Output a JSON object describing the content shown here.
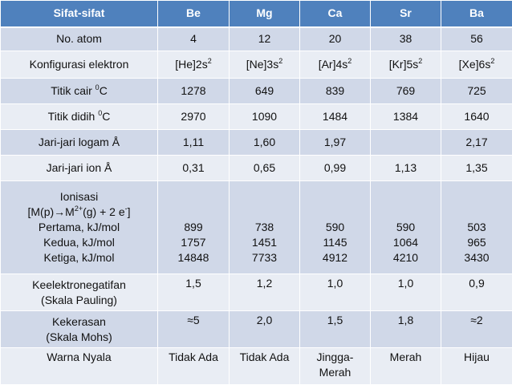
{
  "header": [
    "Sifat-sifat",
    "Be",
    "Mg",
    "Ca",
    "Sr",
    "Ba"
  ],
  "rows": {
    "atom_no": {
      "label": "No. atom",
      "values": [
        "4",
        "12",
        "20",
        "38",
        "56"
      ]
    },
    "config": {
      "label": "Konfigurasi elektron",
      "values": [
        {
          "base": "[He]2s",
          "sup": "2"
        },
        {
          "base": "[Ne]3s",
          "sup": "2"
        },
        {
          "base": "[Ar]4s",
          "sup": "2"
        },
        {
          "base": "[Kr]5s",
          "sup": "2"
        },
        {
          "base": "[Xe]6s",
          "sup": "2"
        }
      ]
    },
    "melting": {
      "label_pre": "Titik cair ",
      "label_sup": "0",
      "label_post": "C",
      "values": [
        "1278",
        "649",
        "839",
        "769",
        "725"
      ]
    },
    "boiling": {
      "label_pre": "Titik didih ",
      "label_sup": "0",
      "label_post": "C",
      "values": [
        "2970",
        "1090",
        "1484",
        "1384",
        "1640"
      ]
    },
    "metal_radius": {
      "label": "Jari-jari logam Å",
      "values": [
        "1,11",
        "1,60",
        "1,97",
        "",
        "2,17"
      ]
    },
    "ion_radius": {
      "label": "Jari-jari ion Å",
      "values": [
        "0,31",
        "0,65",
        "0,99",
        "1,13",
        "1,35"
      ]
    },
    "ionization": {
      "title": "Ionisasi",
      "eq_a": "[M(p)→M",
      "eq_sup1": "2+",
      "eq_b": "(g) + 2 e",
      "eq_sup2": "-",
      "eq_c": "]",
      "first_label": "Pertama, kJ/mol",
      "second_label": "Kedua, kJ/mol",
      "third_label": "Ketiga, kJ/mol",
      "first": [
        "899",
        "738",
        "590",
        "590",
        "503"
      ],
      "second": [
        "1757",
        "1451",
        "1145",
        "1064",
        "965"
      ],
      "third": [
        "14848",
        "7733",
        "4912",
        "4210",
        "3430"
      ]
    },
    "electroneg": {
      "label1": "Keelektronegatifan",
      "label2": "(Skala Pauling)",
      "values": [
        "1,5",
        "1,2",
        "1,0",
        "1,0",
        "0,9"
      ]
    },
    "hardness": {
      "label1": "Kekerasan",
      "label2": "(Skala Mohs)",
      "values": [
        "≈5",
        "2,0",
        "1,5",
        "1,8",
        "≈2"
      ]
    },
    "flame": {
      "label": "Warna Nyala",
      "values": [
        "Tidak Ada",
        "Tidak Ada",
        "Jingga-Merah",
        "Merah",
        "Hijau"
      ],
      "ca_line1": "Jingga-",
      "ca_line2": "Merah"
    }
  },
  "colors": {
    "header": "#4f81bd",
    "row_dark": "#d0d8e8",
    "row_light": "#e9edf4"
  }
}
